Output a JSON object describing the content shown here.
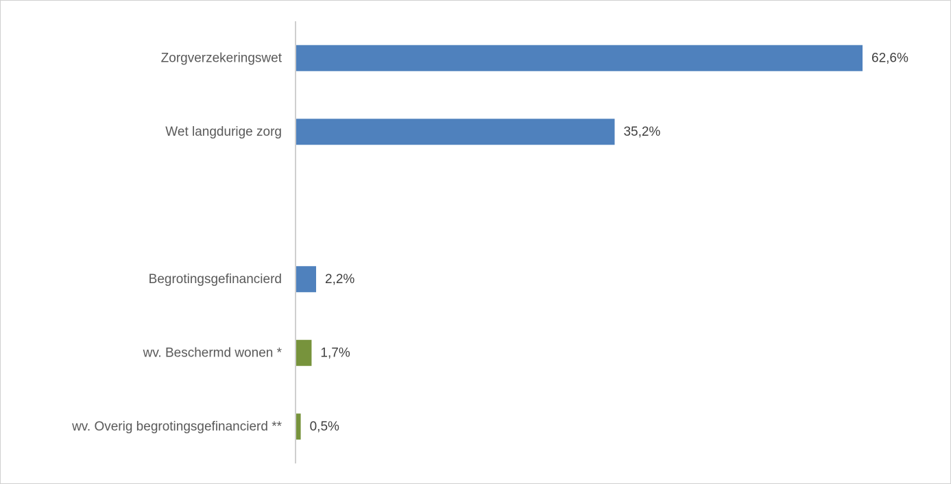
{
  "chart_data": {
    "type": "bar",
    "orientation": "horizontal",
    "title": "",
    "xlabel": "",
    "ylabel": "",
    "xlim": [
      0,
      62.6
    ],
    "grid": false,
    "legend": "none",
    "categories": [
      "Zorgverzekeringswet",
      "Wet langdurige zorg",
      "",
      "Begrotingsgefinancierd",
      "wv. Beschermd wonen *",
      "wv. Overig begrotingsgefinancierd **"
    ],
    "values": [
      62.6,
      35.2,
      null,
      2.2,
      1.7,
      0.5
    ],
    "value_labels": [
      "62,6%",
      "35,2%",
      "",
      "2,2%",
      "1,7%",
      "0,5%"
    ],
    "colors": [
      "#4f81bd",
      "#4f81bd",
      null,
      "#4f81bd",
      "#77933c",
      "#77933c"
    ]
  }
}
